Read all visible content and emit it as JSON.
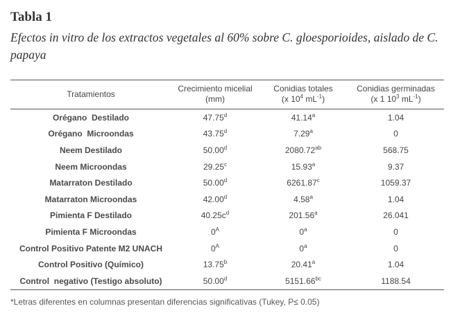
{
  "title": "Tabla 1",
  "subtitle": "Efectos in vitro de los extractos vegetales al 60% sobre C. gloesporioides, aislado de C. papaya",
  "table": {
    "header": {
      "treatments": "Tratamientos",
      "growth": [
        "Crecimiento micelial",
        "(mm)"
      ],
      "conidia": [
        "Conidias totales",
        [
          "(x 10",
          "4",
          " mL",
          "-1",
          ")"
        ]
      ],
      "germinated": [
        "Conidias germinadas",
        [
          "(x 1 10",
          "3",
          " mL",
          "-1",
          ")"
        ]
      ]
    },
    "rows": [
      {
        "treatment": "Orégano  Destilado",
        "growth": {
          "value": "47.75",
          "sup": "d"
        },
        "conidia": {
          "value": "41.14",
          "sup": "a"
        },
        "germinated": "1.04"
      },
      {
        "treatment": "Orégano  Microondas",
        "growth": {
          "value": "43.75",
          "sup": "d"
        },
        "conidia": {
          "value": "7.29",
          "sup": "a"
        },
        "germinated": "0"
      },
      {
        "treatment": "Neem Destilado",
        "growth": {
          "value": "50.00",
          "sup": "d"
        },
        "conidia": {
          "value": "2080.72",
          "sup": "ab"
        },
        "germinated": "568.75"
      },
      {
        "treatment": "Neem Microondas",
        "growth": {
          "value": "29.25",
          "sup": "c"
        },
        "conidia": {
          "value": "15.93",
          "sup": "a"
        },
        "germinated": "9.37"
      },
      {
        "treatment": "Matarraton Destilado",
        "growth": {
          "value": "50.00",
          "sup": "d"
        },
        "conidia": {
          "value": "6261.87",
          "sup": "c"
        },
        "germinated": "1059.37"
      },
      {
        "treatment": "Matarraton Microondas",
        "growth": {
          "value": "42.00",
          "sup": "d"
        },
        "conidia": {
          "value": "4.58",
          "sup": "a"
        },
        "germinated": "1.04"
      },
      {
        "treatment": "Pimienta F Destilado",
        "growth": {
          "value": "40.25c",
          "sup": "d"
        },
        "conidia": {
          "value": "201.56",
          "sup": "a"
        },
        "germinated": "26.041"
      },
      {
        "treatment": "Pimienta F Microondas",
        "growth": {
          "value": "0",
          "sup": "A"
        },
        "conidia": {
          "value": "0",
          "sup": "a"
        },
        "germinated": "0"
      },
      {
        "treatment": "Control Positivo Patente M2 UNACH",
        "growth": {
          "value": "0",
          "sup": "A"
        },
        "conidia": {
          "value": "0",
          "sup": "a"
        },
        "germinated": "0"
      },
      {
        "treatment": "Control Positivo (Químico)",
        "growth": {
          "value": "13.75",
          "sup": "b"
        },
        "conidia": {
          "value": "20.41",
          "sup": "a"
        },
        "germinated": "1.04"
      },
      {
        "treatment": "Control  negativo (Testigo absoluto)",
        "growth": {
          "value": "50.00",
          "sup": "d"
        },
        "conidia": {
          "value": "5151.66",
          "sup": "bc"
        },
        "germinated": "1188.54"
      }
    ]
  },
  "footnote": "*Letras diferentes en columnas presentan diferencias significativas (Tukey, P≤ 0.05)"
}
